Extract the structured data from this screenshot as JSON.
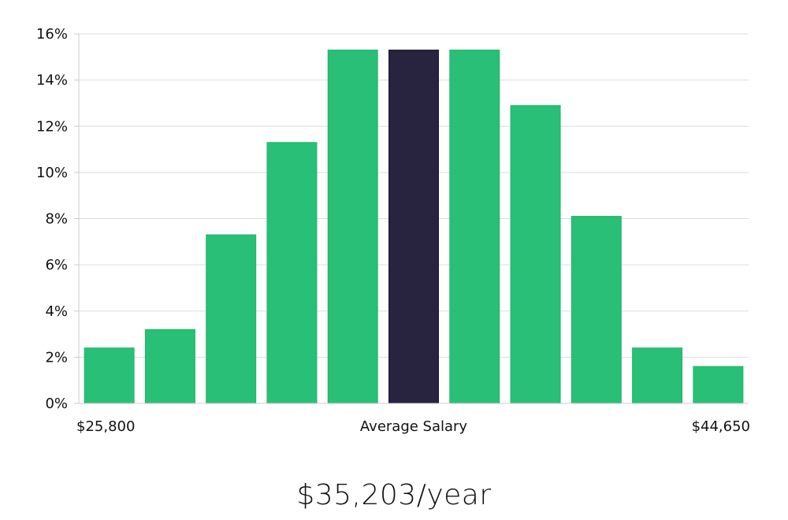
{
  "chart_data": {
    "type": "bar",
    "values": [
      2.4,
      3.2,
      7.3,
      11.3,
      15.3,
      15.3,
      15.3,
      12.9,
      8.1,
      2.4,
      1.6
    ],
    "highlight_index": 5,
    "ylim": [
      0,
      16
    ],
    "y_ticks": [
      0,
      2,
      4,
      6,
      8,
      10,
      12,
      14,
      16
    ],
    "y_tick_suffix": "%",
    "x_labels": {
      "left": "$25,800",
      "center": "Average Salary",
      "right": "$44,650"
    },
    "grid": true,
    "colors": {
      "bar": "#2abf76",
      "highlight": "#28233f",
      "grid": "#dddddd",
      "axis": "#cccccc"
    }
  },
  "salary_text": "$35,203/year"
}
